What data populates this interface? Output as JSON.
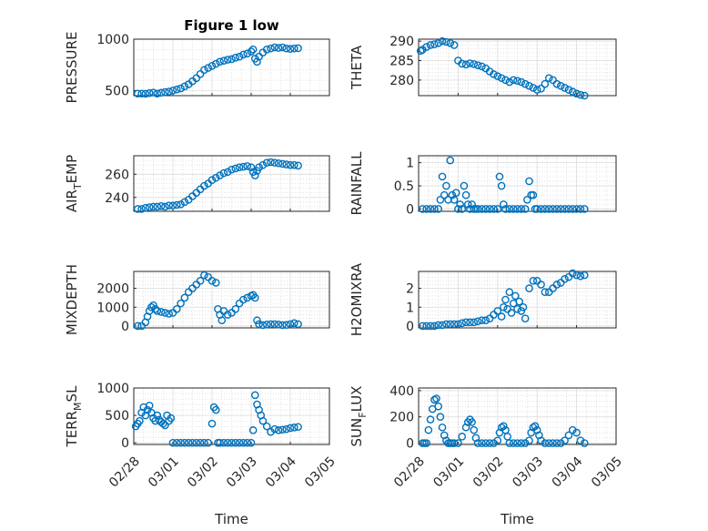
{
  "figure": {
    "accent_color": "#0072BD"
  },
  "chart_data": [
    {
      "type": "scatter",
      "title": "Figure 1 low",
      "ylabel": "PRESSURE",
      "xlabel": "",
      "xlim": [
        0,
        5
      ],
      "ylim": [
        450,
        1000
      ],
      "yticks": [
        500,
        1000
      ],
      "ytick_labels": [
        "500",
        "1000"
      ],
      "xticks": [
        0,
        1,
        2,
        3,
        4,
        5
      ],
      "xtick_labels": [],
      "series": [
        {
          "x": [
            0.1,
            0.2,
            0.3,
            0.4,
            0.5,
            0.6,
            0.7,
            0.8,
            0.9,
            1.0,
            1.1,
            1.2,
            1.3,
            1.4,
            1.5,
            1.6,
            1.7,
            1.8,
            1.9,
            2.0,
            2.1,
            2.2,
            2.3,
            2.4,
            2.5,
            2.6,
            2.7,
            2.8,
            2.9,
            3.0,
            3.05,
            3.1,
            3.15,
            3.2,
            3.3,
            3.4,
            3.5,
            3.6,
            3.7,
            3.8,
            3.9,
            4.0,
            4.1,
            4.2
          ],
          "y": [
            470,
            470,
            468,
            475,
            480,
            470,
            478,
            485,
            490,
            500,
            510,
            520,
            540,
            560,
            590,
            620,
            660,
            700,
            720,
            740,
            760,
            780,
            790,
            800,
            805,
            820,
            830,
            850,
            860,
            880,
            900,
            810,
            780,
            830,
            870,
            900,
            910,
            920,
            915,
            920,
            910,
            905,
            910,
            912
          ]
        }
      ]
    },
    {
      "type": "scatter",
      "title": "",
      "ylabel": "THETA",
      "xlabel": "",
      "xlim": [
        0,
        5
      ],
      "ylim": [
        276,
        290.5
      ],
      "yticks": [
        280,
        285,
        290
      ],
      "ytick_labels": [
        "280",
        "285",
        "290"
      ],
      "xticks": [
        0,
        1,
        2,
        3,
        4,
        5
      ],
      "xtick_labels": [],
      "series": [
        {
          "x": [
            0.05,
            0.1,
            0.2,
            0.3,
            0.4,
            0.5,
            0.6,
            0.7,
            0.8,
            0.9,
            1.0,
            1.1,
            1.2,
            1.3,
            1.4,
            1.5,
            1.6,
            1.7,
            1.8,
            1.9,
            2.0,
            2.1,
            2.2,
            2.3,
            2.4,
            2.5,
            2.6,
            2.7,
            2.8,
            2.9,
            3.0,
            3.1,
            3.2,
            3.3,
            3.4,
            3.5,
            3.6,
            3.7,
            3.8,
            3.9,
            4.0,
            4.1,
            4.2
          ],
          "y": [
            287.5,
            287.8,
            288.5,
            289,
            289.2,
            289.5,
            290,
            289.8,
            289.5,
            289,
            285,
            284.2,
            284,
            284.3,
            284.1,
            283.8,
            283.5,
            283,
            282.2,
            281.5,
            281,
            280.5,
            280,
            279.5,
            280,
            279.8,
            279.5,
            279,
            278.5,
            278,
            277.5,
            277.8,
            279,
            280.5,
            280,
            279,
            278.5,
            278,
            277.5,
            277,
            276.5,
            276.2,
            276
          ]
        }
      ]
    },
    {
      "type": "scatter",
      "title": "",
      "ylabel": "AIR_TEMP",
      "ylabel_parts": [
        "AIR",
        "T",
        "EMP"
      ],
      "xlabel": "",
      "xlim": [
        0,
        5
      ],
      "ylim": [
        228,
        276
      ],
      "yticks": [
        240,
        260
      ],
      "ytick_labels": [
        "240",
        "260"
      ],
      "xticks": [
        0,
        1,
        2,
        3,
        4,
        5
      ],
      "xtick_labels": [],
      "series": [
        {
          "x": [
            0.1,
            0.2,
            0.3,
            0.4,
            0.5,
            0.6,
            0.7,
            0.8,
            0.9,
            1.0,
            1.1,
            1.2,
            1.3,
            1.4,
            1.5,
            1.6,
            1.7,
            1.8,
            1.9,
            2.0,
            2.1,
            2.2,
            2.3,
            2.4,
            2.5,
            2.6,
            2.7,
            2.8,
            2.9,
            3.0,
            3.05,
            3.1,
            3.15,
            3.2,
            3.3,
            3.4,
            3.5,
            3.6,
            3.7,
            3.8,
            3.9,
            4.0,
            4.1,
            4.2
          ],
          "y": [
            230,
            230,
            231,
            231.5,
            232,
            232,
            232.5,
            232,
            233,
            233,
            233.5,
            234,
            236,
            238,
            241,
            244,
            247,
            250,
            252,
            255,
            257,
            259,
            261,
            262,
            264,
            265,
            266,
            266.5,
            267,
            266,
            262,
            259,
            263,
            266,
            268,
            270,
            270.5,
            270,
            269.5,
            269,
            268.5,
            268,
            268,
            267.5
          ]
        }
      ]
    },
    {
      "type": "scatter",
      "title": "",
      "ylabel": "RAINFALL",
      "xlabel": "",
      "xlim": [
        0,
        5
      ],
      "ylim": [
        -0.05,
        1.15
      ],
      "yticks": [
        0,
        0.5,
        1
      ],
      "ytick_labels": [
        "0",
        "0.5",
        "1"
      ],
      "xticks": [
        0,
        1,
        2,
        3,
        4,
        5
      ],
      "xtick_labels": [],
      "series": [
        {
          "x": [
            0.1,
            0.2,
            0.3,
            0.4,
            0.5,
            0.55,
            0.6,
            0.65,
            0.7,
            0.75,
            0.8,
            0.85,
            0.9,
            0.95,
            1.0,
            1.05,
            1.1,
            1.15,
            1.2,
            1.25,
            1.3,
            1.35,
            1.4,
            1.45,
            1.5,
            1.6,
            1.7,
            1.8,
            1.9,
            2.0,
            2.05,
            2.1,
            2.15,
            2.2,
            2.3,
            2.4,
            2.5,
            2.6,
            2.7,
            2.75,
            2.8,
            2.85,
            2.9,
            2.95,
            3.0,
            3.1,
            3.2,
            3.3,
            3.4,
            3.5,
            3.6,
            3.7,
            3.8,
            3.9,
            4.0,
            4.1,
            4.2
          ],
          "y": [
            0,
            0,
            0,
            0,
            0,
            0.2,
            0.7,
            0.3,
            0.5,
            0.2,
            1.05,
            0.3,
            0.2,
            0.35,
            0.0,
            0.1,
            0.0,
            0.5,
            0.3,
            0.1,
            0.0,
            0.1,
            0.0,
            0.0,
            0.0,
            0.0,
            0.0,
            0.0,
            0.0,
            0.0,
            0.7,
            0.5,
            0.1,
            0.0,
            0.0,
            0.0,
            0.0,
            0.0,
            0.0,
            0.2,
            0.6,
            0.3,
            0.3,
            0.0,
            0.0,
            0.0,
            0.0,
            0.0,
            0.0,
            0.0,
            0.0,
            0.0,
            0.0,
            0.0,
            0.0,
            0.0,
            0.0
          ]
        }
      ]
    },
    {
      "type": "scatter",
      "title": "",
      "ylabel": "MIXDEPTH",
      "xlabel": "",
      "xlim": [
        0,
        5
      ],
      "ylim": [
        -100,
        2900
      ],
      "yticks": [
        0,
        1000,
        2000
      ],
      "ytick_labels": [
        "0",
        "1000",
        "2000"
      ],
      "xticks": [
        0,
        1,
        2,
        3,
        4,
        5
      ],
      "xtick_labels": [],
      "series": [
        {
          "x": [
            0.1,
            0.2,
            0.3,
            0.35,
            0.4,
            0.45,
            0.5,
            0.55,
            0.6,
            0.7,
            0.8,
            0.9,
            1.0,
            1.1,
            1.2,
            1.3,
            1.4,
            1.5,
            1.6,
            1.7,
            1.8,
            1.9,
            2.0,
            2.1,
            2.15,
            2.2,
            2.25,
            2.3,
            2.4,
            2.5,
            2.6,
            2.7,
            2.8,
            2.9,
            3.0,
            3.05,
            3.1,
            3.15,
            3.2,
            3.3,
            3.4,
            3.5,
            3.6,
            3.7,
            3.8,
            3.9,
            4.0,
            4.1,
            4.2
          ],
          "y": [
            0,
            0,
            200,
            500,
            800,
            1000,
            1100,
            900,
            800,
            750,
            700,
            650,
            700,
            900,
            1200,
            1500,
            1800,
            2000,
            2200,
            2400,
            2700,
            2600,
            2400,
            2300,
            900,
            600,
            300,
            800,
            600,
            700,
            900,
            1200,
            1400,
            1500,
            1600,
            1650,
            1500,
            300,
            100,
            50,
            80,
            100,
            100,
            80,
            50,
            60,
            100,
            150,
            100
          ]
        }
      ]
    },
    {
      "type": "scatter",
      "title": "",
      "ylabel": "H2OMIXRA",
      "xlabel": "",
      "xlim": [
        0,
        5
      ],
      "ylim": [
        -0.1,
        2.9
      ],
      "yticks": [
        0,
        1,
        2
      ],
      "ytick_labels": [
        "0",
        "1",
        "2"
      ],
      "xticks": [
        0,
        1,
        2,
        3,
        4,
        5
      ],
      "xtick_labels": [],
      "series": [
        {
          "x": [
            0.1,
            0.2,
            0.3,
            0.4,
            0.5,
            0.6,
            0.7,
            0.8,
            0.9,
            1.0,
            1.1,
            1.2,
            1.3,
            1.4,
            1.5,
            1.6,
            1.7,
            1.8,
            1.9,
            2.0,
            2.1,
            2.15,
            2.2,
            2.25,
            2.3,
            2.35,
            2.4,
            2.45,
            2.5,
            2.55,
            2.6,
            2.65,
            2.7,
            2.8,
            2.9,
            3.0,
            3.1,
            3.2,
            3.3,
            3.4,
            3.5,
            3.6,
            3.7,
            3.8,
            3.9,
            4.0,
            4.1,
            4.2
          ],
          "y": [
            0,
            0,
            0,
            0,
            0.05,
            0.05,
            0.1,
            0.1,
            0.1,
            0.1,
            0.15,
            0.2,
            0.2,
            0.2,
            0.25,
            0.3,
            0.3,
            0.4,
            0.6,
            0.8,
            0.5,
            1.0,
            1.4,
            0.9,
            1.8,
            0.7,
            1.2,
            1.6,
            0.9,
            1.3,
            0.8,
            1.0,
            0.4,
            2.0,
            2.4,
            2.4,
            2.2,
            1.8,
            1.8,
            2.0,
            2.2,
            2.3,
            2.5,
            2.6,
            2.8,
            2.7,
            2.65,
            2.7
          ]
        }
      ]
    },
    {
      "type": "scatter",
      "title": "",
      "ylabel": "TERR_MSL",
      "ylabel_parts": [
        "TERR",
        "M",
        "SL"
      ],
      "xlabel": "Time",
      "xlim": [
        0,
        5
      ],
      "ylim": [
        -30,
        1000
      ],
      "yticks": [
        0,
        500,
        1000
      ],
      "ytick_labels": [
        "0",
        "500",
        "1000"
      ],
      "xticks": [
        0,
        1,
        2,
        3,
        4,
        5
      ],
      "xtick_labels": [
        "02/28",
        "03/01",
        "03/02",
        "03/03",
        "03/04",
        "03/05"
      ],
      "series": [
        {
          "x": [
            0.05,
            0.1,
            0.15,
            0.2,
            0.25,
            0.3,
            0.35,
            0.4,
            0.45,
            0.5,
            0.55,
            0.6,
            0.65,
            0.7,
            0.75,
            0.8,
            0.85,
            0.9,
            0.95,
            1.0,
            1.1,
            1.2,
            1.3,
            1.4,
            1.5,
            1.6,
            1.7,
            1.8,
            1.9,
            2.0,
            2.05,
            2.1,
            2.15,
            2.2,
            2.3,
            2.4,
            2.5,
            2.6,
            2.7,
            2.8,
            2.9,
            3.0,
            3.05,
            3.1,
            3.15,
            3.2,
            3.25,
            3.3,
            3.4,
            3.5,
            3.6,
            3.7,
            3.8,
            3.9,
            4.0,
            4.1,
            4.2
          ],
          "y": [
            300,
            350,
            400,
            550,
            650,
            500,
            600,
            680,
            550,
            450,
            400,
            500,
            420,
            380,
            350,
            320,
            500,
            400,
            450,
            0,
            0,
            0,
            0,
            0,
            0,
            0,
            0,
            0,
            0,
            350,
            650,
            600,
            0,
            0,
            0,
            0,
            0,
            0,
            0,
            0,
            0,
            0,
            230,
            870,
            700,
            600,
            500,
            400,
            300,
            200,
            250,
            230,
            240,
            250,
            270,
            280,
            290
          ]
        }
      ]
    },
    {
      "type": "scatter",
      "title": "",
      "ylabel": "SUN_FLUX",
      "ylabel_parts": [
        "SUN",
        "F",
        "LUX"
      ],
      "xlabel": "Time",
      "xlim": [
        0,
        5
      ],
      "ylim": [
        -10,
        420
      ],
      "yticks": [
        0,
        200,
        400
      ],
      "ytick_labels": [
        "0",
        "200",
        "400"
      ],
      "xticks": [
        0,
        1,
        2,
        3,
        4,
        5
      ],
      "xtick_labels": [
        "02/28",
        "03/01",
        "03/02",
        "03/03",
        "03/04",
        "03/05"
      ],
      "series": [
        {
          "x": [
            0.1,
            0.15,
            0.2,
            0.25,
            0.3,
            0.35,
            0.4,
            0.45,
            0.5,
            0.55,
            0.6,
            0.65,
            0.7,
            0.75,
            0.8,
            0.85,
            0.9,
            1.0,
            1.1,
            1.2,
            1.25,
            1.3,
            1.35,
            1.4,
            1.45,
            1.5,
            1.6,
            1.7,
            1.8,
            1.9,
            2.0,
            2.05,
            2.1,
            2.15,
            2.2,
            2.25,
            2.3,
            2.4,
            2.5,
            2.6,
            2.7,
            2.8,
            2.85,
            2.9,
            2.95,
            3.0,
            3.05,
            3.1,
            3.2,
            3.3,
            3.4,
            3.5,
            3.6,
            3.7,
            3.8,
            3.9,
            4.0,
            4.1,
            4.2
          ],
          "y": [
            0,
            0,
            0,
            100,
            180,
            260,
            330,
            340,
            280,
            200,
            120,
            60,
            20,
            0,
            0,
            0,
            0,
            0,
            50,
            120,
            160,
            180,
            160,
            100,
            40,
            0,
            0,
            0,
            0,
            0,
            20,
            80,
            120,
            130,
            100,
            50,
            0,
            0,
            0,
            0,
            0,
            20,
            80,
            120,
            130,
            100,
            60,
            20,
            0,
            0,
            0,
            0,
            0,
            20,
            60,
            100,
            80,
            20,
            0
          ]
        }
      ]
    }
  ]
}
